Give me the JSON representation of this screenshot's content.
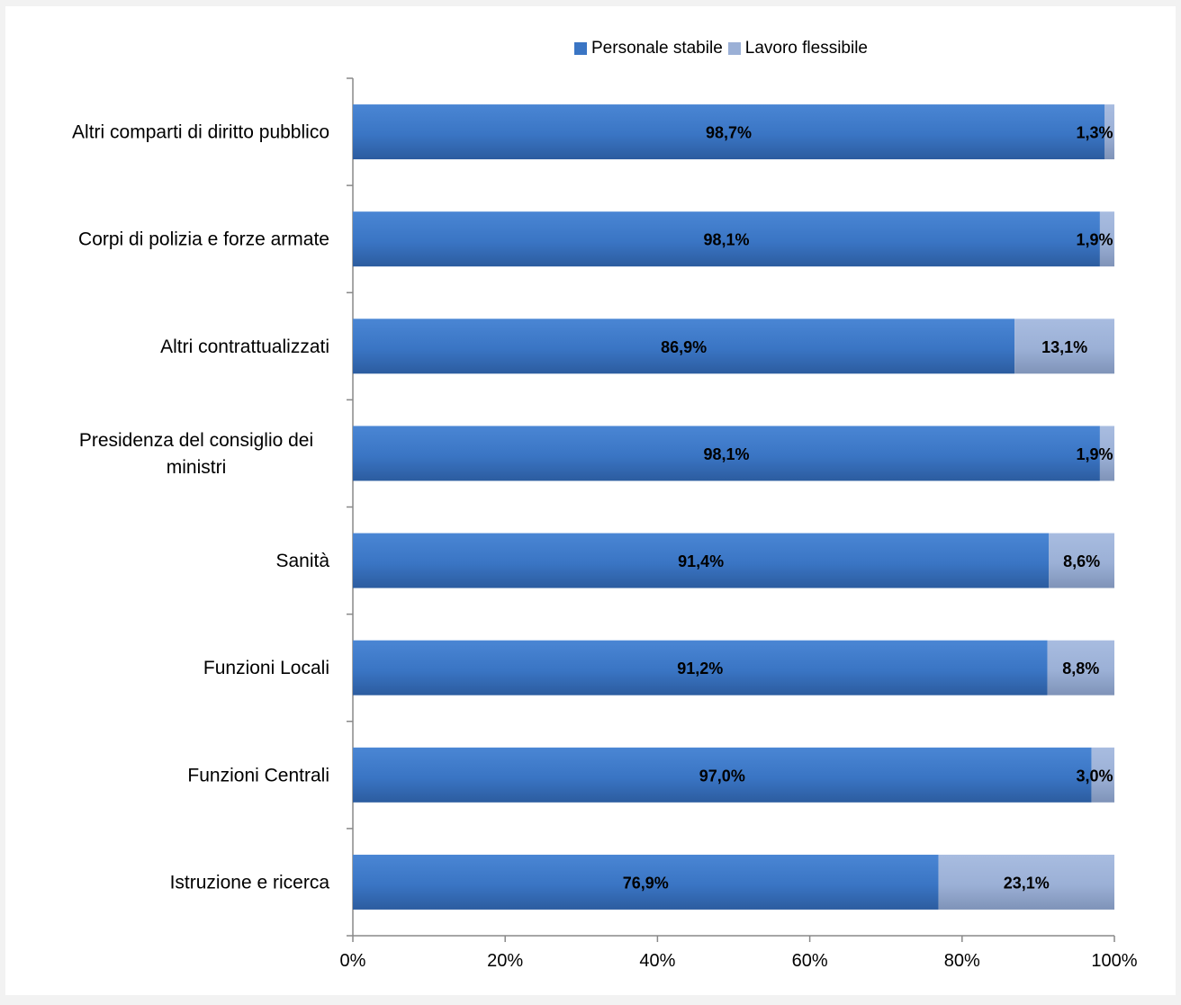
{
  "chart_data": {
    "type": "bar",
    "orientation": "horizontal",
    "stacked": "percent",
    "categories": [
      "Altri comparti di diritto pubblico",
      "Corpi di polizia e forze armate",
      "Altri contrattualizzati",
      "Presidenza del consiglio dei ministri",
      "Sanità",
      "Funzioni Locali",
      "Funzioni Centrali",
      "Istruzione e ricerca"
    ],
    "series": [
      {
        "name": "Personale stabile",
        "color": "#3a75c4",
        "values": [
          98.7,
          98.1,
          86.9,
          98.1,
          91.4,
          91.2,
          97.0,
          76.9
        ],
        "labels": [
          "98,7%",
          "98,1%",
          "86,9%",
          "98,1%",
          "91,4%",
          "91,2%",
          "97,0%",
          "76,9%"
        ]
      },
      {
        "name": "Lavoro flessibile",
        "color": "#9bb0d6",
        "values": [
          1.3,
          1.9,
          13.1,
          1.9,
          8.6,
          8.8,
          3.0,
          23.1
        ],
        "labels": [
          "1,3%",
          "1,9%",
          "13,1%",
          "1,9%",
          "8,6%",
          "8,8%",
          "3,0%",
          "23,1%"
        ]
      }
    ],
    "xticks": [
      "0%",
      "20%",
      "40%",
      "60%",
      "80%",
      "100%"
    ],
    "xlim": [
      0,
      100
    ],
    "grid": false,
    "legend_position": "top"
  }
}
